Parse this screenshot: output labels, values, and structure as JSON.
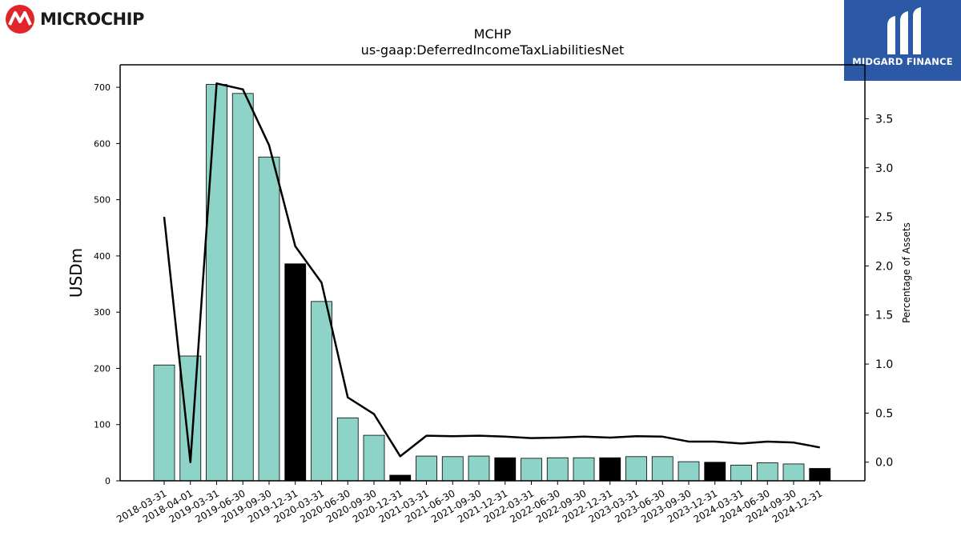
{
  "header": {
    "brand_logo_text": "MICROCHIP",
    "partner_logo_text": "MIDGARD FINANCE"
  },
  "colors": {
    "bar_default": "#8dd3c7",
    "bar_highlight": "#000000",
    "line": "#000000",
    "logo_red": "#e0262a",
    "partner_bg": "#2b59a6"
  },
  "chart_data": {
    "type": "bar",
    "title": "MCHP",
    "subtitle": "us-gaap:DeferredIncomeTaxLiabilitiesNet",
    "ylabel": "USDm",
    "y2label": "Percentage of Assets",
    "ylim": [
      0,
      740
    ],
    "y2lim": [
      -0.19,
      4.05
    ],
    "yticks": [
      0,
      100,
      200,
      300,
      400,
      500,
      600,
      700
    ],
    "y2ticks": [
      0.0,
      0.5,
      1.0,
      1.5,
      2.0,
      2.5,
      3.0,
      3.5
    ],
    "y2tick_labels": [
      "0.0",
      "0.5",
      "1.0",
      "1.5",
      "2.0",
      "2.5",
      "3.0",
      "3.5"
    ],
    "grid": false,
    "legend": "none",
    "categories": [
      "2018-03-31",
      "2018-04-01",
      "2019-03-31",
      "2019-06-30",
      "2019-09-30",
      "2019-12-31",
      "2020-03-31",
      "2020-06-30",
      "2020-09-30",
      "2020-12-31",
      "2021-03-31",
      "2021-06-30",
      "2021-09-30",
      "2021-12-31",
      "2022-03-31",
      "2022-06-30",
      "2022-09-30",
      "2022-12-31",
      "2023-03-31",
      "2023-06-30",
      "2023-09-30",
      "2023-12-31",
      "2024-03-31",
      "2024-06-30",
      "2024-09-30",
      "2024-12-31"
    ],
    "values": [
      206,
      222,
      705,
      689,
      576,
      386,
      319,
      112,
      81,
      10,
      44,
      43,
      44,
      41,
      40,
      41,
      41,
      41,
      43,
      43,
      34,
      33,
      28,
      32,
      30,
      22
    ],
    "highlighted": [
      false,
      false,
      false,
      false,
      false,
      true,
      false,
      false,
      false,
      true,
      false,
      false,
      false,
      true,
      false,
      false,
      false,
      true,
      false,
      false,
      false,
      true,
      false,
      false,
      false,
      true
    ],
    "line_values": [
      2.5,
      0.0,
      3.86,
      3.8,
      3.23,
      2.2,
      1.83,
      0.66,
      0.49,
      0.06,
      0.27,
      0.265,
      0.27,
      0.26,
      0.245,
      0.25,
      0.26,
      0.25,
      0.265,
      0.26,
      0.21,
      0.21,
      0.19,
      0.21,
      0.2,
      0.15
    ]
  }
}
